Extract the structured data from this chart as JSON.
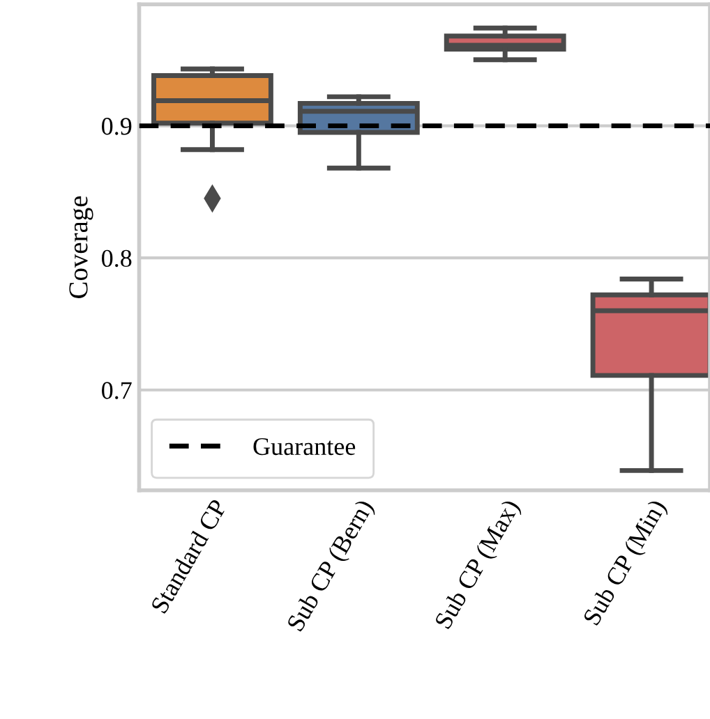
{
  "chart_data": {
    "type": "box",
    "ylabel": "Coverage",
    "categories": [
      "Standard CP",
      "Sub CP (Bern)",
      "Sub CP (Max)",
      "Sub CP (Min)"
    ],
    "colors": [
      "#dd8a3e",
      "#5577a0",
      "#cd6467",
      "#cd6467"
    ],
    "boxes": [
      {
        "low": 0.882,
        "q1": 0.902,
        "median": 0.919,
        "q3": 0.938,
        "high": 0.943,
        "outliers": [
          0.845
        ]
      },
      {
        "low": 0.868,
        "q1": 0.895,
        "median": 0.911,
        "q3": 0.917,
        "high": 0.922
      },
      {
        "low": 0.95,
        "q1": 0.958,
        "median": 0.961,
        "q3": 0.968,
        "high": 0.974
      },
      {
        "low": 0.639,
        "q1": 0.711,
        "median": 0.76,
        "q3": 0.772,
        "high": 0.784
      }
    ],
    "ylim": [
      0.624,
      0.992
    ],
    "yticks": [
      0.7,
      0.8,
      0.9
    ],
    "grid": "y",
    "legend": "lower left",
    "ref_lines": [
      {
        "axis": "y",
        "value": 0.9,
        "label": "Guarantee",
        "color": "#000000",
        "line_style": "dashed"
      }
    ]
  }
}
